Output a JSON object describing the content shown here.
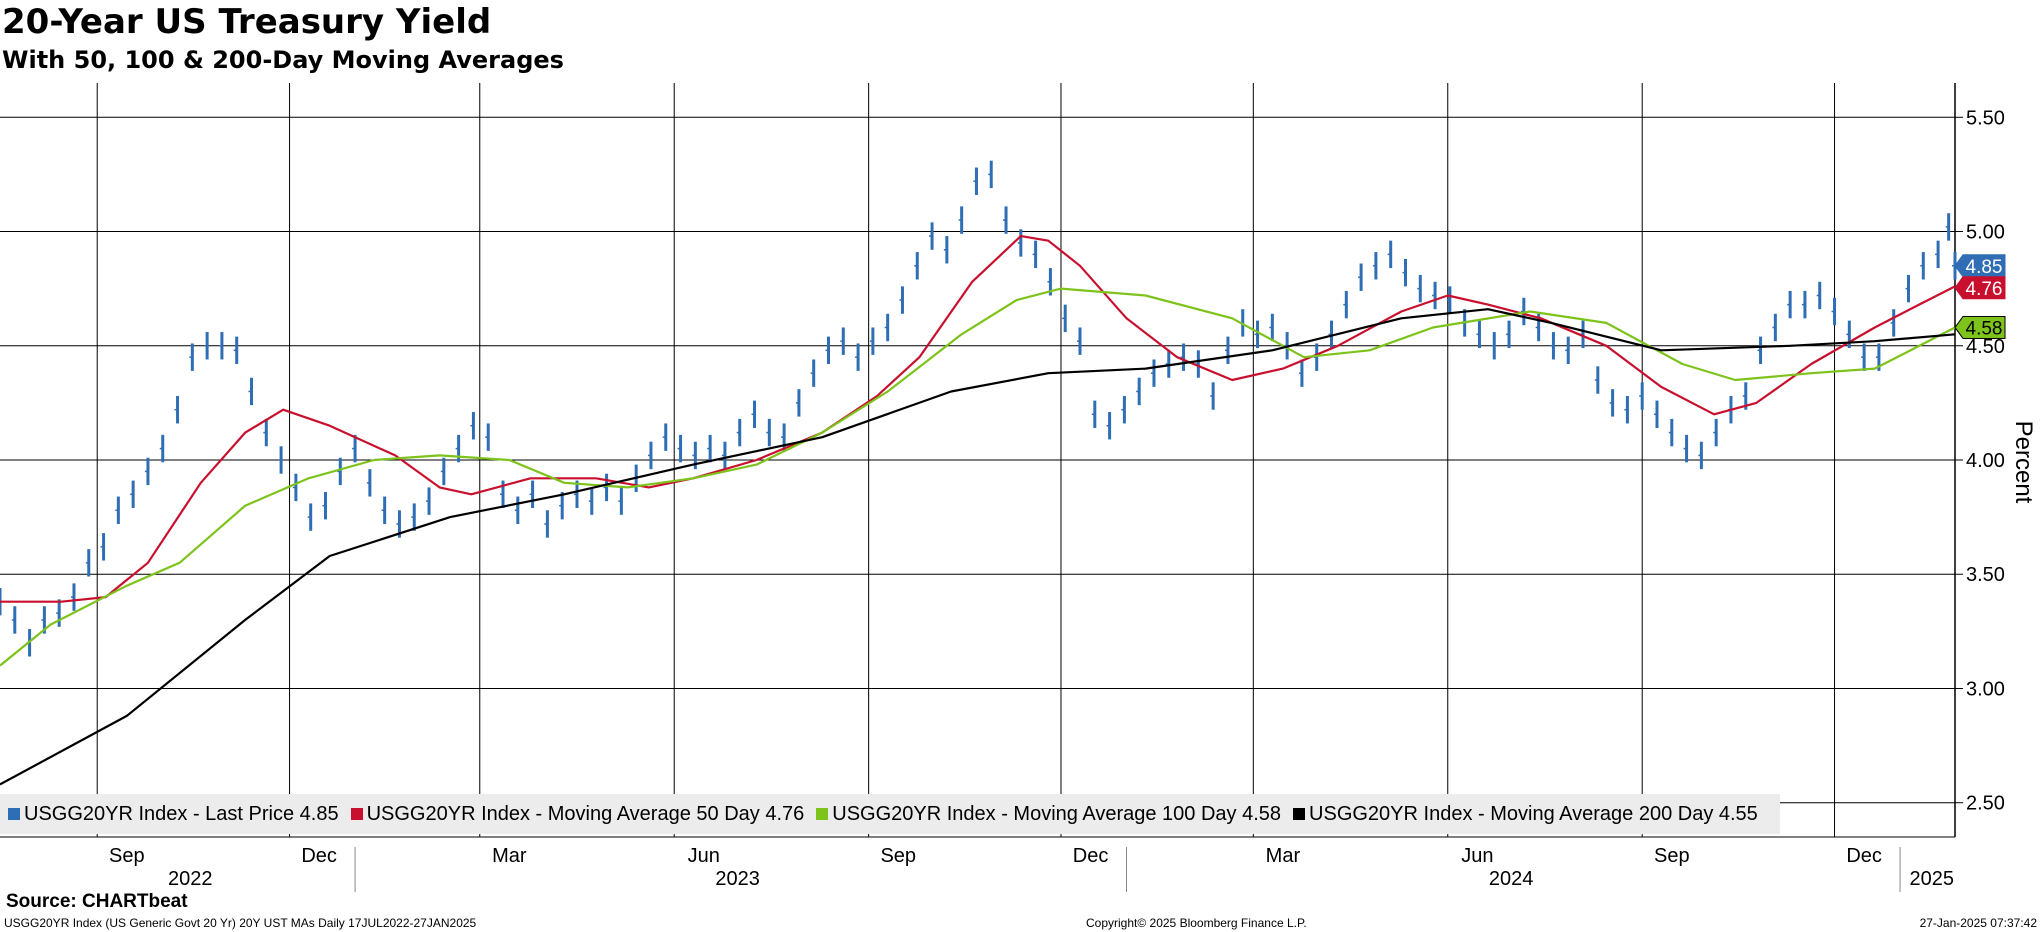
{
  "header": {
    "title": "20-Year US Treasury Yield",
    "subtitle": "With 50, 100 & 200-Day Moving Averages"
  },
  "chart_data": {
    "type": "line",
    "title": "20-Year US Treasury Yield",
    "subtitle": "With 50, 100 & 200-Day Moving Averages",
    "ylabel": "Percent",
    "ylim": [
      2.35,
      5.65
    ],
    "yticks": [
      "5.50",
      "5.00",
      "4.50",
      "4.00",
      "3.50",
      "3.00",
      "2.50"
    ],
    "ytick_values": [
      5.5,
      5.0,
      4.5,
      4.0,
      3.5,
      3.0,
      2.5
    ],
    "xlim": [
      "2022-07-17",
      "2025-01-27"
    ],
    "x_axis": {
      "months": [
        {
          "label": "Sep",
          "date": "2022-09-15"
        },
        {
          "label": "Dec",
          "date": "2022-12-15"
        },
        {
          "label": "Mar",
          "date": "2023-03-15"
        },
        {
          "label": "Jun",
          "date": "2023-06-15"
        },
        {
          "label": "Sep",
          "date": "2023-09-15"
        },
        {
          "label": "Dec",
          "date": "2023-12-15"
        },
        {
          "label": "Mar",
          "date": "2024-03-15"
        },
        {
          "label": "Jun",
          "date": "2024-06-15"
        },
        {
          "label": "Sep",
          "date": "2024-09-15"
        },
        {
          "label": "Dec",
          "date": "2024-12-15"
        }
      ],
      "month_gridlines": [
        "2022-09-01",
        "2022-12-01",
        "2023-03-01",
        "2023-06-01",
        "2023-09-01",
        "2023-12-01",
        "2024-03-01",
        "2024-06-01",
        "2024-09-01",
        "2024-12-01"
      ],
      "years": [
        {
          "label": "2022",
          "date": "2022-10-15"
        },
        {
          "label": "2023",
          "date": "2023-07-01"
        },
        {
          "label": "2024",
          "date": "2024-07-01"
        },
        {
          "label": "2025",
          "date": "2025-01-16"
        }
      ],
      "year_boundaries": [
        "2023-01-01",
        "2024-01-01",
        "2025-01-01"
      ]
    },
    "grid": true,
    "legend_position": "bottom-left",
    "series": [
      {
        "name": "USGG20YR Index - Last Price 4.85",
        "style": "bar",
        "color": "#2f6eb5",
        "last_value": "4.85",
        "points": [
          [
            "2022-07-17",
            3.38
          ],
          [
            "2022-07-24",
            3.3
          ],
          [
            "2022-07-31",
            3.2
          ],
          [
            "2022-08-07",
            3.3
          ],
          [
            "2022-08-14",
            3.33
          ],
          [
            "2022-08-21",
            3.4
          ],
          [
            "2022-08-28",
            3.55
          ],
          [
            "2022-09-04",
            3.62
          ],
          [
            "2022-09-11",
            3.78
          ],
          [
            "2022-09-18",
            3.85
          ],
          [
            "2022-09-25",
            3.95
          ],
          [
            "2022-10-02",
            4.05
          ],
          [
            "2022-10-09",
            4.22
          ],
          [
            "2022-10-16",
            4.45
          ],
          [
            "2022-10-23",
            4.5
          ],
          [
            "2022-10-30",
            4.5
          ],
          [
            "2022-11-06",
            4.48
          ],
          [
            "2022-11-13",
            4.3
          ],
          [
            "2022-11-20",
            4.12
          ],
          [
            "2022-11-27",
            4.0
          ],
          [
            "2022-12-04",
            3.88
          ],
          [
            "2022-12-11",
            3.75
          ],
          [
            "2022-12-18",
            3.8
          ],
          [
            "2022-12-25",
            3.95
          ],
          [
            "2023-01-01",
            4.05
          ],
          [
            "2023-01-08",
            3.9
          ],
          [
            "2023-01-15",
            3.78
          ],
          [
            "2023-01-22",
            3.72
          ],
          [
            "2023-01-29",
            3.75
          ],
          [
            "2023-02-05",
            3.82
          ],
          [
            "2023-02-12",
            3.95
          ],
          [
            "2023-02-19",
            4.05
          ],
          [
            "2023-02-26",
            4.15
          ],
          [
            "2023-03-05",
            4.1
          ],
          [
            "2023-03-12",
            3.85
          ],
          [
            "2023-03-19",
            3.78
          ],
          [
            "2023-03-26",
            3.85
          ],
          [
            "2023-04-02",
            3.72
          ],
          [
            "2023-04-09",
            3.8
          ],
          [
            "2023-04-16",
            3.85
          ],
          [
            "2023-04-23",
            3.82
          ],
          [
            "2023-04-30",
            3.88
          ],
          [
            "2023-05-07",
            3.82
          ],
          [
            "2023-05-14",
            3.92
          ],
          [
            "2023-05-21",
            4.02
          ],
          [
            "2023-05-28",
            4.1
          ],
          [
            "2023-06-04",
            4.05
          ],
          [
            "2023-06-11",
            4.02
          ],
          [
            "2023-06-18",
            4.05
          ],
          [
            "2023-06-25",
            4.02
          ],
          [
            "2023-07-02",
            4.12
          ],
          [
            "2023-07-09",
            4.2
          ],
          [
            "2023-07-16",
            4.12
          ],
          [
            "2023-07-23",
            4.1
          ],
          [
            "2023-07-30",
            4.25
          ],
          [
            "2023-08-06",
            4.38
          ],
          [
            "2023-08-13",
            4.48
          ],
          [
            "2023-08-20",
            4.52
          ],
          [
            "2023-08-27",
            4.45
          ],
          [
            "2023-09-03",
            4.52
          ],
          [
            "2023-09-10",
            4.58
          ],
          [
            "2023-09-17",
            4.7
          ],
          [
            "2023-09-24",
            4.85
          ],
          [
            "2023-10-01",
            4.98
          ],
          [
            "2023-10-08",
            4.92
          ],
          [
            "2023-10-15",
            5.05
          ],
          [
            "2023-10-22",
            5.22
          ],
          [
            "2023-10-29",
            5.25
          ],
          [
            "2023-11-05",
            5.05
          ],
          [
            "2023-11-12",
            4.95
          ],
          [
            "2023-11-19",
            4.9
          ],
          [
            "2023-11-26",
            4.78
          ],
          [
            "2023-12-03",
            4.62
          ],
          [
            "2023-12-10",
            4.52
          ],
          [
            "2023-12-17",
            4.2
          ],
          [
            "2023-12-24",
            4.15
          ],
          [
            "2023-12-31",
            4.22
          ],
          [
            "2024-01-07",
            4.3
          ],
          [
            "2024-01-14",
            4.38
          ],
          [
            "2024-01-21",
            4.42
          ],
          [
            "2024-01-28",
            4.45
          ],
          [
            "2024-02-04",
            4.42
          ],
          [
            "2024-02-11",
            4.28
          ],
          [
            "2024-02-18",
            4.48
          ],
          [
            "2024-02-25",
            4.6
          ],
          [
            "2024-03-03",
            4.55
          ],
          [
            "2024-03-10",
            4.58
          ],
          [
            "2024-03-17",
            4.5
          ],
          [
            "2024-03-24",
            4.38
          ],
          [
            "2024-03-31",
            4.45
          ],
          [
            "2024-04-07",
            4.55
          ],
          [
            "2024-04-14",
            4.68
          ],
          [
            "2024-04-21",
            4.8
          ],
          [
            "2024-04-28",
            4.85
          ],
          [
            "2024-05-05",
            4.9
          ],
          [
            "2024-05-12",
            4.82
          ],
          [
            "2024-05-19",
            4.75
          ],
          [
            "2024-05-26",
            4.72
          ],
          [
            "2024-06-02",
            4.7
          ],
          [
            "2024-06-09",
            4.6
          ],
          [
            "2024-06-16",
            4.55
          ],
          [
            "2024-06-23",
            4.5
          ],
          [
            "2024-06-30",
            4.55
          ],
          [
            "2024-07-07",
            4.65
          ],
          [
            "2024-07-14",
            4.58
          ],
          [
            "2024-07-21",
            4.5
          ],
          [
            "2024-07-28",
            4.48
          ],
          [
            "2024-08-04",
            4.55
          ],
          [
            "2024-08-11",
            4.35
          ],
          [
            "2024-08-18",
            4.25
          ],
          [
            "2024-08-25",
            4.22
          ],
          [
            "2024-09-01",
            4.28
          ],
          [
            "2024-09-08",
            4.2
          ],
          [
            "2024-09-15",
            4.12
          ],
          [
            "2024-09-22",
            4.05
          ],
          [
            "2024-09-29",
            4.02
          ],
          [
            "2024-10-06",
            4.12
          ],
          [
            "2024-10-13",
            4.22
          ],
          [
            "2024-10-20",
            4.28
          ],
          [
            "2024-10-27",
            4.48
          ],
          [
            "2024-11-03",
            4.58
          ],
          [
            "2024-11-10",
            4.68
          ],
          [
            "2024-11-17",
            4.68
          ],
          [
            "2024-11-24",
            4.72
          ],
          [
            "2024-12-01",
            4.65
          ],
          [
            "2024-12-08",
            4.55
          ],
          [
            "2024-12-15",
            4.45
          ],
          [
            "2024-12-22",
            4.45
          ],
          [
            "2024-12-29",
            4.6
          ],
          [
            "2025-01-05",
            4.75
          ],
          [
            "2025-01-12",
            4.85
          ],
          [
            "2025-01-19",
            4.9
          ],
          [
            "2025-01-24",
            5.02
          ],
          [
            "2025-01-27",
            4.85
          ]
        ]
      },
      {
        "name": "USGG20YR Index - Moving Average 50 Day 4.76",
        "style": "line",
        "color": "#c8102e",
        "last_value": "4.76",
        "points": [
          [
            "2022-07-17",
            3.38
          ],
          [
            "2022-08-15",
            3.38
          ],
          [
            "2022-09-05",
            3.4
          ],
          [
            "2022-09-25",
            3.55
          ],
          [
            "2022-10-20",
            3.9
          ],
          [
            "2022-11-10",
            4.12
          ],
          [
            "2022-11-28",
            4.22
          ],
          [
            "2022-12-20",
            4.15
          ],
          [
            "2023-01-20",
            4.02
          ],
          [
            "2023-02-10",
            3.88
          ],
          [
            "2023-02-25",
            3.85
          ],
          [
            "2023-03-25",
            3.92
          ],
          [
            "2023-04-25",
            3.92
          ],
          [
            "2023-05-20",
            3.88
          ],
          [
            "2023-06-10",
            3.92
          ],
          [
            "2023-07-10",
            4.0
          ],
          [
            "2023-08-10",
            4.12
          ],
          [
            "2023-09-05",
            4.28
          ],
          [
            "2023-09-25",
            4.45
          ],
          [
            "2023-10-20",
            4.78
          ],
          [
            "2023-11-12",
            4.98
          ],
          [
            "2023-11-25",
            4.96
          ],
          [
            "2023-12-10",
            4.85
          ],
          [
            "2024-01-01",
            4.62
          ],
          [
            "2024-01-25",
            4.45
          ],
          [
            "2024-02-20",
            4.35
          ],
          [
            "2024-03-15",
            4.4
          ],
          [
            "2024-04-10",
            4.5
          ],
          [
            "2024-05-10",
            4.65
          ],
          [
            "2024-06-01",
            4.72
          ],
          [
            "2024-06-20",
            4.68
          ],
          [
            "2024-07-15",
            4.62
          ],
          [
            "2024-08-15",
            4.5
          ],
          [
            "2024-09-10",
            4.32
          ],
          [
            "2024-10-05",
            4.2
          ],
          [
            "2024-10-25",
            4.25
          ],
          [
            "2024-11-20",
            4.42
          ],
          [
            "2024-12-20",
            4.58
          ],
          [
            "2025-01-10",
            4.68
          ],
          [
            "2025-01-27",
            4.76
          ]
        ]
      },
      {
        "name": "USGG20YR Index - Moving Average 100 Day 4.58",
        "style": "line",
        "color": "#7dc31b",
        "last_value": "4.58",
        "points": [
          [
            "2022-07-17",
            3.1
          ],
          [
            "2022-08-10",
            3.28
          ],
          [
            "2022-09-15",
            3.45
          ],
          [
            "2022-10-10",
            3.55
          ],
          [
            "2022-11-10",
            3.8
          ],
          [
            "2022-12-10",
            3.92
          ],
          [
            "2023-01-10",
            4.0
          ],
          [
            "2023-02-10",
            4.02
          ],
          [
            "2023-03-15",
            4.0
          ],
          [
            "2023-04-10",
            3.9
          ],
          [
            "2023-05-10",
            3.88
          ],
          [
            "2023-06-10",
            3.92
          ],
          [
            "2023-07-10",
            3.98
          ],
          [
            "2023-08-10",
            4.12
          ],
          [
            "2023-09-10",
            4.3
          ],
          [
            "2023-10-15",
            4.55
          ],
          [
            "2023-11-10",
            4.7
          ],
          [
            "2023-12-01",
            4.75
          ],
          [
            "2024-01-10",
            4.72
          ],
          [
            "2024-02-20",
            4.62
          ],
          [
            "2024-03-25",
            4.45
          ],
          [
            "2024-04-25",
            4.48
          ],
          [
            "2024-05-25",
            4.58
          ],
          [
            "2024-07-10",
            4.65
          ],
          [
            "2024-08-15",
            4.6
          ],
          [
            "2024-09-20",
            4.42
          ],
          [
            "2024-10-15",
            4.35
          ],
          [
            "2024-11-20",
            4.38
          ],
          [
            "2024-12-20",
            4.4
          ],
          [
            "2025-01-27",
            4.58
          ]
        ]
      },
      {
        "name": "USGG20YR Index - Moving Average 200 Day 4.55",
        "style": "line",
        "color": "#000000",
        "last_value": "4.55",
        "points": [
          [
            "2022-07-17",
            2.58
          ],
          [
            "2022-09-15",
            2.88
          ],
          [
            "2022-11-10",
            3.3
          ],
          [
            "2022-12-20",
            3.58
          ],
          [
            "2023-02-15",
            3.75
          ],
          [
            "2023-04-10",
            3.85
          ],
          [
            "2023-06-10",
            3.98
          ],
          [
            "2023-08-10",
            4.1
          ],
          [
            "2023-10-10",
            4.3
          ],
          [
            "2023-11-25",
            4.38
          ],
          [
            "2024-01-10",
            4.4
          ],
          [
            "2024-03-10",
            4.48
          ],
          [
            "2024-05-10",
            4.62
          ],
          [
            "2024-06-20",
            4.66
          ],
          [
            "2024-07-20",
            4.6
          ],
          [
            "2024-09-10",
            4.48
          ],
          [
            "2024-11-10",
            4.5
          ],
          [
            "2024-12-20",
            4.52
          ],
          [
            "2025-01-27",
            4.55
          ]
        ]
      }
    ]
  },
  "legend": [
    {
      "label": "USGG20YR Index - Last Price 4.85",
      "color": "#2f6eb5"
    },
    {
      "label": "USGG20YR Index - Moving Average 50 Day 4.76",
      "color": "#c8102e"
    },
    {
      "label": "USGG20YR Index - Moving Average 100 Day 4.58",
      "color": "#7dc31b"
    },
    {
      "label": "USGG20YR Index - Moving Average 200 Day 4.55",
      "color": "#000000"
    }
  ],
  "footer": {
    "source": "Source: CHARTbeat",
    "left": "USGG20YR Index (US Generic Govt 20 Yr) 20Y UST MAs  Daily 17JUL2022-27JAN2025",
    "center": "Copyright© 2025 Bloomberg Finance L.P.",
    "right": "27-Jan-2025 07:37:42"
  }
}
